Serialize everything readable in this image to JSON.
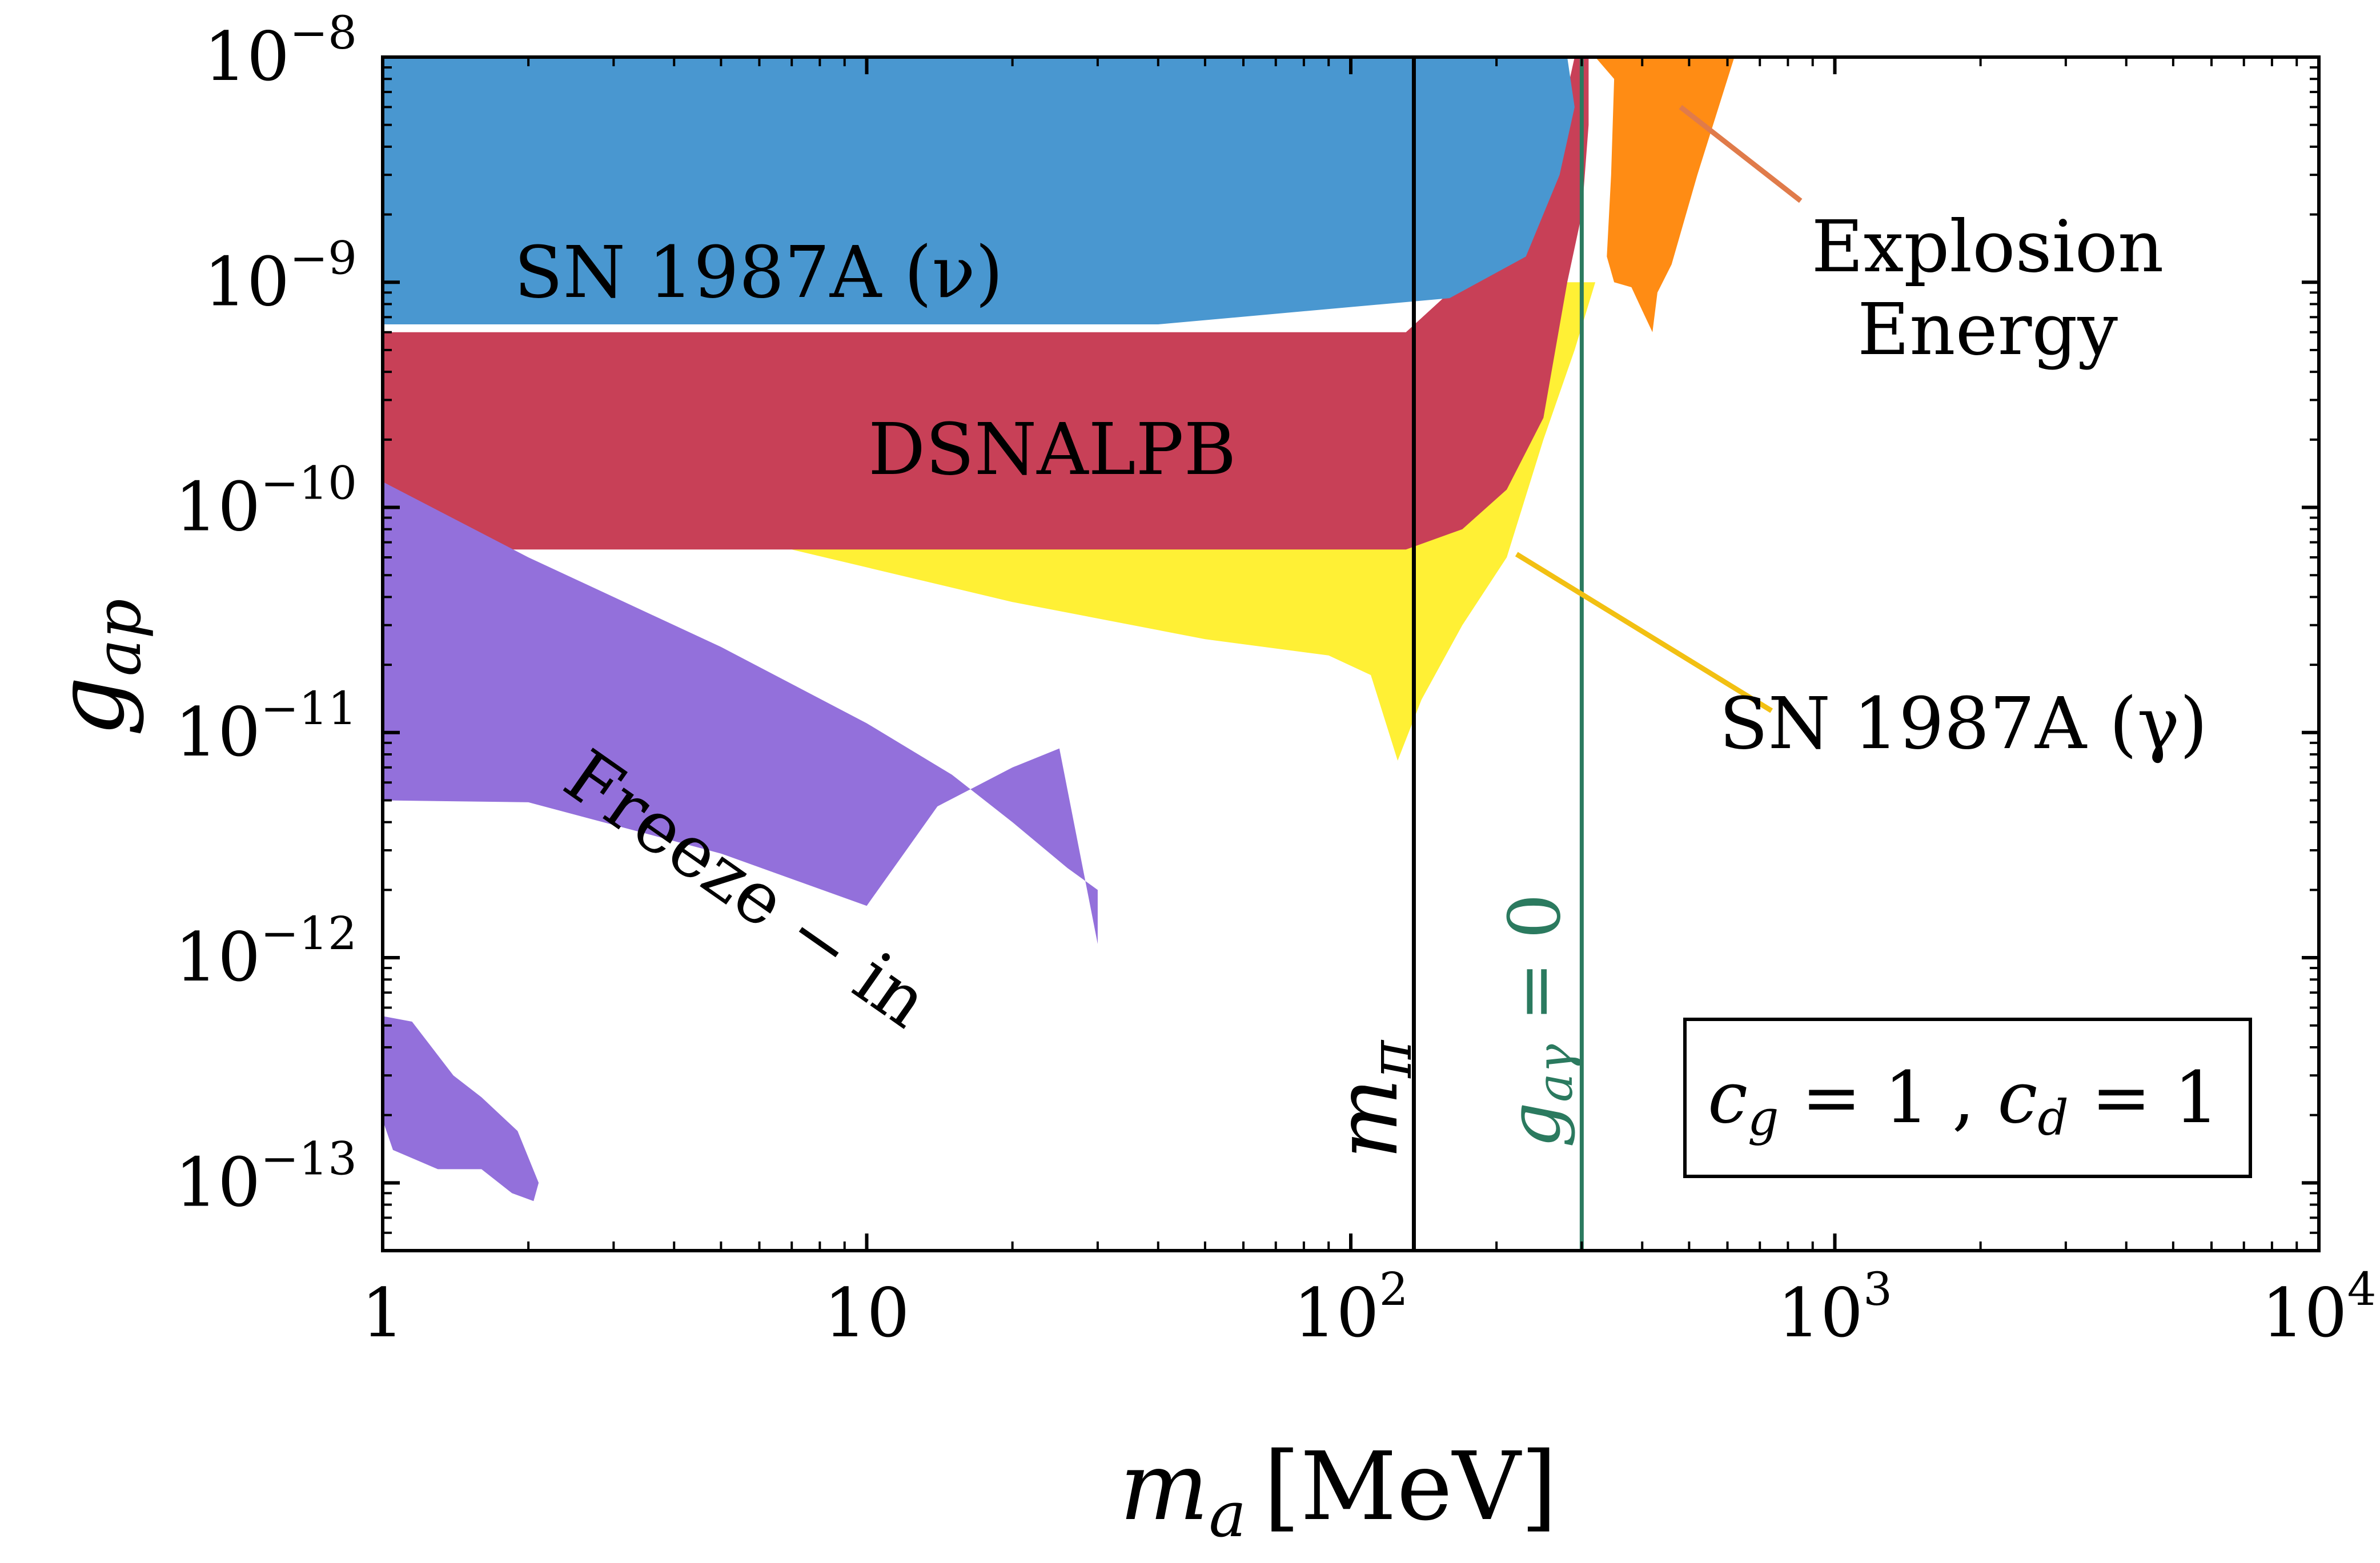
{
  "chart_data": {
    "type": "region-plot",
    "title": "",
    "xlabel": {
      "main": "m",
      "sub": "a",
      "unit": "[MeV]"
    },
    "ylabel": {
      "main": "g",
      "sub": "ap"
    },
    "x_scale": "log",
    "y_scale": "log",
    "xlim": [
      1,
      10000
    ],
    "ylim": [
      5e-14,
      1e-08
    ],
    "x_ticks": [
      {
        "value": 1,
        "base": "1",
        "exp": ""
      },
      {
        "value": 10,
        "base": "10",
        "exp": ""
      },
      {
        "value": 100,
        "base": "10",
        "exp": "2"
      },
      {
        "value": 1000,
        "base": "10",
        "exp": "3"
      },
      {
        "value": 10000,
        "base": "10",
        "exp": "4"
      }
    ],
    "y_ticks": [
      {
        "value": 1e-08,
        "base": "10",
        "exp": "−8"
      },
      {
        "value": 1e-09,
        "base": "10",
        "exp": "−9"
      },
      {
        "value": 1e-10,
        "base": "10",
        "exp": "−10"
      },
      {
        "value": 1e-11,
        "base": "10",
        "exp": "−11"
      },
      {
        "value": 1e-12,
        "base": "10",
        "exp": "−12"
      },
      {
        "value": 1e-13,
        "base": "10",
        "exp": "−13"
      }
    ],
    "regions": [
      {
        "name": "SN 1987A (γ)",
        "key": "sn-gamma",
        "color": "#fff035",
        "points": [
          [
            7,
            6.5e-11
          ],
          [
            20,
            3.8e-11
          ],
          [
            50,
            2.6e-11
          ],
          [
            90,
            2.2e-11
          ],
          [
            110,
            1.8e-11
          ],
          [
            125,
            7.5e-12
          ],
          [
            140,
            1.4e-11
          ],
          [
            170,
            3e-11
          ],
          [
            210,
            6e-11
          ],
          [
            250,
            2e-10
          ],
          [
            290,
            5e-10
          ],
          [
            320,
            1e-09
          ],
          [
            360,
            1e-09
          ],
          [
            300,
            1e-09
          ],
          [
            260,
            1e-09
          ],
          [
            200,
            1.2e-10
          ],
          [
            130,
            1.2e-10
          ],
          [
            7,
            6.5e-11
          ]
        ]
      },
      {
        "name": "DSNALPB",
        "key": "dsnalpb",
        "color": "#c84057",
        "points": [
          [
            1,
            6.5e-11
          ],
          [
            130,
            6.5e-11
          ],
          [
            170,
            8e-11
          ],
          [
            210,
            1.2e-10
          ],
          [
            250,
            2.5e-10
          ],
          [
            280,
            1e-09
          ],
          [
            300,
            2e-09
          ],
          [
            310,
            5e-09
          ],
          [
            310,
            1e-08
          ],
          [
            290,
            1e-08
          ],
          [
            270,
            5e-09
          ],
          [
            240,
            2e-09
          ],
          [
            130,
            6e-10
          ],
          [
            1,
            6e-10
          ]
        ]
      },
      {
        "name": "SN 1987A (ν)",
        "key": "sn-nu",
        "color": "#4997d0",
        "points": [
          [
            1,
            1e-08
          ],
          [
            280,
            1e-08
          ],
          [
            290,
            6e-09
          ],
          [
            270,
            3e-09
          ],
          [
            230,
            1.3e-09
          ],
          [
            160,
            8.5e-10
          ],
          [
            40,
            6.5e-10
          ],
          [
            1,
            6.5e-10
          ]
        ]
      },
      {
        "name": "Explosion Energy",
        "key": "explosion",
        "color": "#ff8c14",
        "points": [
          [
            320,
            1e-08
          ],
          [
            350,
            8e-09
          ],
          [
            345,
            3e-09
          ],
          [
            338,
            1.3e-09
          ],
          [
            350,
            1e-09
          ],
          [
            380,
            9.5e-10
          ],
          [
            400,
            7.5e-10
          ],
          [
            420,
            6e-10
          ],
          [
            430,
            9e-10
          ],
          [
            460,
            1.2e-09
          ],
          [
            520,
            3e-09
          ],
          [
            620,
            1e-08
          ]
        ]
      },
      {
        "name": "Freeze − in",
        "key": "freeze-in",
        "color": "#9370db",
        "points": [
          [
            1,
            1.3e-10
          ],
          [
            2,
            6e-11
          ],
          [
            5,
            2.4e-11
          ],
          [
            10,
            1.1e-11
          ],
          [
            15,
            6.5e-12
          ],
          [
            20,
            4e-12
          ],
          [
            26,
            2.5e-12
          ],
          [
            30,
            2e-12
          ],
          [
            30,
            1.15e-12
          ],
          [
            25,
            8.5e-12
          ],
          [
            20,
            7e-12
          ],
          [
            14,
            4.7e-12
          ],
          [
            10,
            1.7e-12
          ],
          [
            5,
            2.9e-12
          ],
          [
            2,
            4.9e-12
          ],
          [
            1,
            5e-12
          ]
        ]
      },
      {
        "name": "",
        "key": "freeze-in-blob",
        "color": "#9370db",
        "points": [
          [
            1,
            5.5e-13
          ],
          [
            1.15,
            5.2e-13
          ],
          [
            1.4,
            3e-13
          ],
          [
            1.6,
            2.4e-13
          ],
          [
            1.9,
            1.7e-13
          ],
          [
            2.1,
            1e-13
          ],
          [
            2.05,
            8.3e-14
          ],
          [
            1.85,
            9e-14
          ],
          [
            1.6,
            1.15e-13
          ],
          [
            1.3,
            1.15e-13
          ],
          [
            1.05,
            1.4e-13
          ],
          [
            1,
            1.9e-13
          ]
        ]
      }
    ],
    "lines": [
      {
        "name": "m_π",
        "key": "m-pi",
        "x": 135,
        "color": "#000000"
      },
      {
        "name": "g_aγ = 0",
        "key": "g-agamma-zero",
        "x": 300,
        "color": "#2b7a5f"
      }
    ],
    "labels": {
      "sn_nu": "SN 1987A (ν)",
      "dsnalpb": "DSNALPB",
      "explosion_line1": "Explosion",
      "explosion_line2": "Energy",
      "sn_gamma": "SN 1987A (γ)",
      "freeze_in": "Freeze − in",
      "m_pi_main": "m",
      "m_pi_sub": "π",
      "g_zero_main": "g",
      "g_zero_sub": "aγ",
      "g_zero_rest": " = 0"
    },
    "annotation_lines": [
      {
        "key": "explosion",
        "color": "#e07b4a",
        "from": [
          480,
          6e-09
        ],
        "to": [
          850,
          2.3e-09
        ]
      },
      {
        "key": "sn-gamma",
        "color": "#f2c012",
        "from": [
          220,
          6.2e-11
        ],
        "to": [
          740,
          1.25e-11
        ]
      }
    ],
    "legend_box": {
      "c_g_main": "c",
      "c_g_sub": "g",
      "c_g_val": " = 1 , ",
      "c_d_main": "c",
      "c_d_sub": "d",
      "c_d_val": " = 1"
    }
  }
}
